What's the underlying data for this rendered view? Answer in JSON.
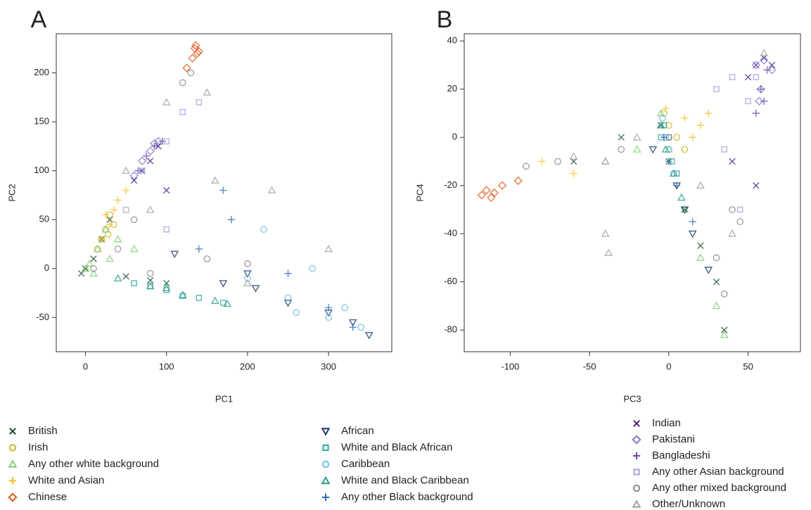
{
  "chart_data": [
    {
      "type": "scatter",
      "panel_label": "A",
      "xlabel": "PC1",
      "ylabel": "PC2",
      "xlim": [
        -36,
        378
      ],
      "ylim": [
        -85,
        240
      ],
      "xticks": [
        0,
        100,
        200,
        300
      ],
      "yticks": [
        -50,
        0,
        50,
        100,
        150,
        200
      ],
      "series": [
        {
          "name": "British",
          "color": "#1b4d2e",
          "marker": "x",
          "x": [
            -5,
            0,
            10,
            20,
            30,
            50,
            80,
            100
          ],
          "values": [
            -5,
            0,
            10,
            30,
            50,
            -8,
            -12,
            -15
          ]
        },
        {
          "name": "Irish",
          "color": "#c9b727",
          "marker": "circle",
          "x": [
            20,
            25,
            30,
            35,
            28,
            15
          ],
          "values": [
            30,
            40,
            55,
            45,
            35,
            20
          ]
        },
        {
          "name": "Any other white background",
          "color": "#7fcf72",
          "marker": "triangle",
          "x": [
            0,
            5,
            15,
            25,
            40,
            60,
            10,
            30
          ],
          "values": [
            0,
            5,
            20,
            40,
            30,
            20,
            -5,
            10
          ]
        },
        {
          "name": "White and Asian",
          "color": "#f4c02a",
          "marker": "plus",
          "x": [
            20,
            30,
            40,
            50,
            25,
            35
          ],
          "values": [
            30,
            45,
            70,
            80,
            55,
            60
          ]
        },
        {
          "name": "Chinese",
          "color": "#e0581c",
          "marker": "diamond",
          "x": [
            135,
            138,
            132,
            140,
            136,
            125
          ],
          "values": [
            225,
            220,
            215,
            222,
            228,
            205
          ]
        },
        {
          "name": "African",
          "color": "#1b3a6d",
          "marker": "triangle-down",
          "x": [
            170,
            210,
            250,
            300,
            330,
            350,
            110,
            200
          ],
          "values": [
            -15,
            -20,
            -35,
            -45,
            -55,
            -68,
            15,
            -5
          ]
        },
        {
          "name": "White and Black African",
          "color": "#2fa6a3",
          "marker": "square",
          "x": [
            60,
            100,
            140,
            170,
            120,
            80
          ],
          "values": [
            -15,
            -22,
            -30,
            -35,
            -28,
            -18
          ]
        },
        {
          "name": "Caribbean",
          "color": "#72bde3",
          "marker": "circle",
          "x": [
            200,
            250,
            300,
            340,
            280,
            220,
            320,
            260
          ],
          "values": [
            -10,
            -30,
            -50,
            -60,
            0,
            40,
            -40,
            -45
          ]
        },
        {
          "name": "White and Black Caribbean",
          "color": "#2a9c8c",
          "marker": "triangle",
          "x": [
            40,
            80,
            120,
            160,
            175,
            100
          ],
          "values": [
            -10,
            -18,
            -27,
            -33,
            -36,
            -20
          ]
        },
        {
          "name": "Any other Black background",
          "color": "#2d6db7",
          "marker": "plus",
          "x": [
            170,
            180,
            250,
            300,
            330,
            140
          ],
          "values": [
            80,
            50,
            -5,
            -40,
            -60,
            20
          ]
        },
        {
          "name": "Indian",
          "color": "#4b1c8c",
          "marker": "x",
          "x": [
            60,
            80,
            90,
            100,
            70
          ],
          "values": [
            90,
            110,
            125,
            80,
            100
          ]
        },
        {
          "name": "Pakistani",
          "color": "#8b7bc9",
          "marker": "diamond",
          "x": [
            70,
            80,
            90,
            60,
            85
          ],
          "values": [
            110,
            120,
            130,
            95,
            128
          ]
        },
        {
          "name": "Bangladeshi",
          "color": "#6a4ba8",
          "marker": "plus",
          "x": [
            75,
            85,
            95,
            65
          ],
          "values": [
            115,
            125,
            130,
            100
          ]
        },
        {
          "name": "Any other Asian background",
          "color": "#aaa3d8",
          "marker": "square",
          "x": [
            50,
            70,
            100,
            120,
            140,
            100
          ],
          "values": [
            60,
            100,
            130,
            160,
            170,
            40
          ]
        },
        {
          "name": "Any other mixed background",
          "color": "#8c8c8c",
          "marker": "circle",
          "x": [
            10,
            40,
            60,
            80,
            120,
            130,
            150,
            200
          ],
          "values": [
            0,
            20,
            50,
            -5,
            190,
            200,
            10,
            5
          ]
        },
        {
          "name": "Other/Unknown",
          "color": "#a3a3a3",
          "marker": "triangle",
          "x": [
            50,
            100,
            160,
            230,
            150,
            300,
            200,
            80
          ],
          "values": [
            100,
            170,
            90,
            80,
            180,
            20,
            -15,
            60
          ]
        }
      ]
    },
    {
      "type": "scatter",
      "panel_label": "B",
      "xlabel": "PC3",
      "ylabel": "PC4",
      "xlim": [
        -129,
        83
      ],
      "ylim": [
        -89,
        43
      ],
      "xticks": [
        -100,
        -50,
        0,
        50
      ],
      "yticks": [
        -80,
        -60,
        -40,
        -20,
        0,
        20,
        40
      ],
      "series": [
        {
          "color": "#1b4d2e",
          "marker": "x",
          "x": [
            -5,
            0,
            10,
            20,
            30,
            35,
            -30,
            -60
          ],
          "values": [
            5,
            -10,
            -30,
            -45,
            -60,
            -80,
            0,
            -10
          ]
        },
        {
          "color": "#c9b727",
          "marker": "circle",
          "x": [
            -3,
            0,
            5,
            10
          ],
          "values": [
            10,
            5,
            0,
            -5
          ]
        },
        {
          "color": "#7fcf72",
          "marker": "triangle",
          "x": [
            -5,
            0,
            10,
            20,
            30,
            35,
            -20,
            -40
          ],
          "values": [
            10,
            -5,
            -30,
            -50,
            -70,
            -82,
            -5,
            -10
          ]
        },
        {
          "color": "#f4c02a",
          "marker": "plus",
          "x": [
            -2,
            10,
            20,
            25,
            -60,
            -80,
            15
          ],
          "values": [
            12,
            8,
            5,
            10,
            -15,
            -10,
            0
          ]
        },
        {
          "color": "#e0581c",
          "marker": "diamond",
          "x": [
            -118,
            -115,
            -112,
            -110,
            -105,
            -95
          ],
          "values": [
            -24,
            -22,
            -25,
            -23,
            -20,
            -18
          ]
        },
        {
          "color": "#1b3a6d",
          "marker": "triangle-down",
          "x": [
            5,
            15,
            25,
            10,
            -10
          ],
          "values": [
            -20,
            -40,
            -55,
            -30,
            -5
          ]
        },
        {
          "color": "#2fa6a3",
          "marker": "square",
          "x": [
            -3,
            0,
            2,
            -5,
            5
          ],
          "values": [
            5,
            0,
            -10,
            0,
            -15
          ]
        },
        {
          "color": "#72bde3",
          "marker": "circle",
          "x": [
            -4,
            0,
            3,
            -2
          ],
          "values": [
            8,
            -5,
            -15,
            0
          ]
        },
        {
          "color": "#2a9c8c",
          "marker": "triangle",
          "x": [
            -5,
            -2,
            3,
            8
          ],
          "values": [
            5,
            -5,
            -15,
            -25
          ]
        },
        {
          "color": "#2d6db7",
          "marker": "plus",
          "x": [
            -3,
            5,
            15,
            0
          ],
          "values": [
            0,
            -20,
            -35,
            -10
          ]
        },
        {
          "color": "#4b1c8c",
          "marker": "x",
          "x": [
            55,
            60,
            65,
            50,
            40,
            55
          ],
          "values": [
            30,
            33,
            30,
            25,
            -10,
            -20
          ]
        },
        {
          "color": "#8b7bc9",
          "marker": "diamond",
          "x": [
            55,
            60,
            58,
            57,
            65
          ],
          "values": [
            30,
            32,
            20,
            15,
            28
          ]
        },
        {
          "color": "#6a4ba8",
          "marker": "plus",
          "x": [
            60,
            58,
            62,
            55
          ],
          "values": [
            15,
            20,
            28,
            10
          ]
        },
        {
          "color": "#aaa3d8",
          "marker": "square",
          "x": [
            30,
            40,
            50,
            55,
            35,
            45
          ],
          "values": [
            20,
            25,
            15,
            25,
            -5,
            -30
          ]
        },
        {
          "color": "#8c8c8c",
          "marker": "circle",
          "x": [
            -90,
            -70,
            -30,
            0,
            30,
            35,
            45,
            40
          ],
          "values": [
            -12,
            -10,
            -5,
            0,
            -50,
            -65,
            -35,
            -30
          ]
        },
        {
          "color": "#a3a3a3",
          "marker": "triangle",
          "x": [
            -60,
            -40,
            -20,
            -40,
            -38,
            20,
            40,
            60
          ],
          "values": [
            -8,
            -10,
            0,
            -40,
            -48,
            -20,
            -40,
            35
          ]
        }
      ]
    }
  ]
}
